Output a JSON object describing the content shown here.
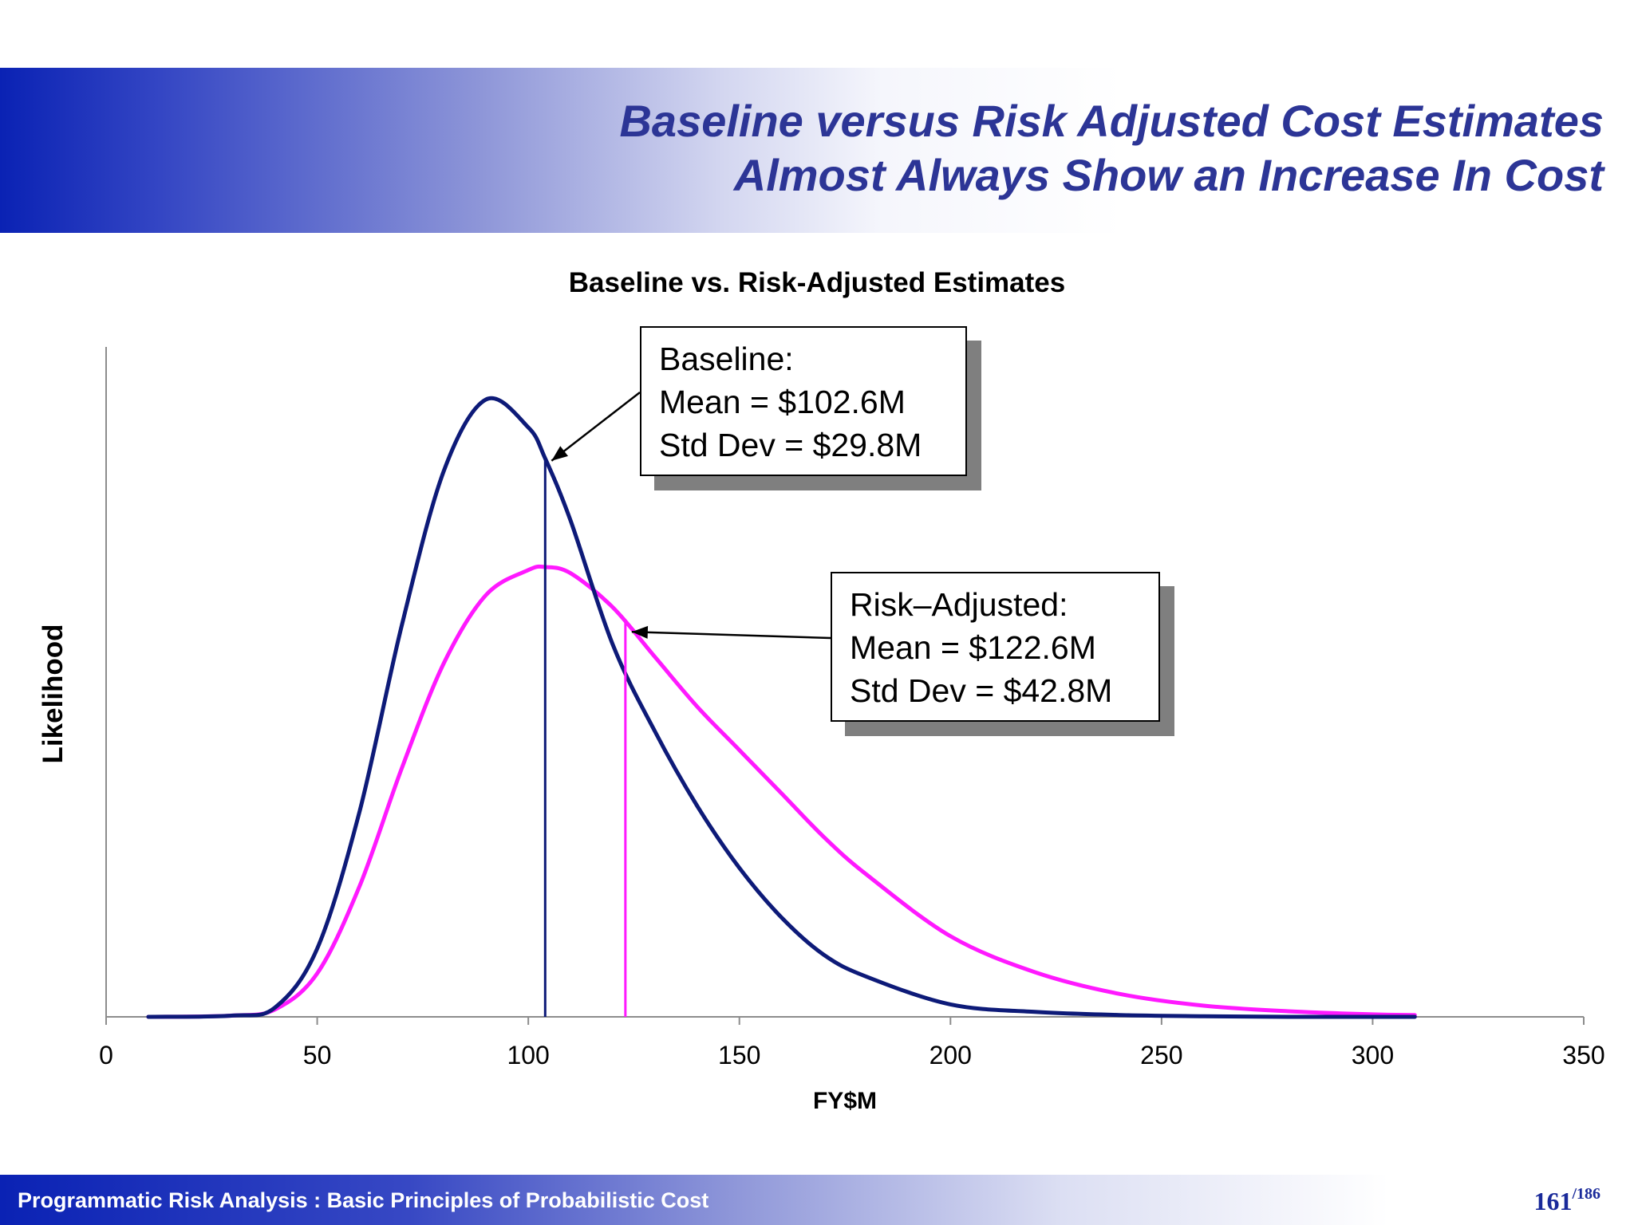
{
  "slide": {
    "title_line1": "Baseline versus Risk Adjusted Cost Estimates",
    "title_line2": "Almost Always Show an Increase In Cost",
    "footer": "Programmatic Risk Analysis  : Basic Principles of Probabilistic Cost",
    "page_number": "161",
    "page_total": "/186"
  },
  "colors": {
    "baseline": "#0d1a78",
    "risk_adjusted": "#ff19ff",
    "axis": "#8c8c8c"
  },
  "chart_data": {
    "type": "line",
    "title": "Baseline vs. Risk-Adjusted Estimates",
    "xlabel": "FY$M",
    "ylabel": "Likelihood",
    "xlim": [
      0,
      350
    ],
    "ylim": [
      0,
      1
    ],
    "x_ticks": [
      0,
      50,
      100,
      150,
      200,
      250,
      300,
      350
    ],
    "grid": false,
    "legend": "none",
    "series": [
      {
        "name": "Baseline",
        "mean_label": "Mean = $102.6M",
        "std_label": "Std Dev = $29.8M",
        "mean_x": 104,
        "x": [
          10,
          30,
          40,
          50,
          60,
          70,
          80,
          90,
          100,
          104,
          110,
          120,
          130,
          140,
          150,
          160,
          170,
          180,
          200,
          220,
          240,
          260,
          280,
          300,
          310
        ],
        "y": [
          0.0,
          0.002,
          0.015,
          0.11,
          0.33,
          0.63,
          0.88,
          0.995,
          0.95,
          0.9,
          0.8,
          0.6,
          0.46,
          0.34,
          0.24,
          0.16,
          0.1,
          0.065,
          0.02,
          0.008,
          0.003,
          0.001,
          0.0,
          0.0,
          0.0
        ]
      },
      {
        "name": "Risk–Adjusted",
        "mean_label": "Mean = $122.6M",
        "std_label": "Std Dev = $42.8M",
        "mean_x": 123,
        "x": [
          10,
          30,
          40,
          50,
          60,
          70,
          80,
          90,
          100,
          104,
          110,
          120,
          130,
          140,
          150,
          160,
          170,
          180,
          200,
          220,
          240,
          260,
          280,
          300,
          310
        ],
        "y": [
          0.0,
          0.002,
          0.012,
          0.07,
          0.21,
          0.4,
          0.57,
          0.68,
          0.72,
          0.725,
          0.715,
          0.66,
          0.58,
          0.5,
          0.43,
          0.36,
          0.29,
          0.23,
          0.13,
          0.072,
          0.037,
          0.018,
          0.009,
          0.004,
          0.003
        ]
      }
    ]
  }
}
